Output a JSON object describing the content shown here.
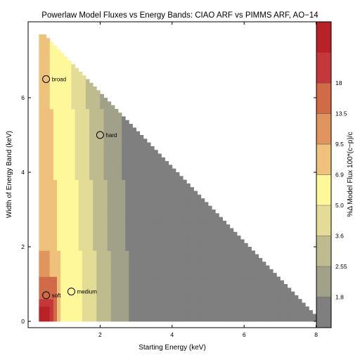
{
  "chart_data": {
    "type": "heatmap",
    "title": "Powerlaw Model Fluxes vs Energy Bands: CIAO ARF vs PIMMS ARF, AO−14",
    "xlabel": "Starting Energy (keV)",
    "ylabel": "Width of Energy Band (keV)",
    "colorbar_label": "%Δ Model Flux 100*(c−p)/c",
    "xlim": [
      0,
      8.6
    ],
    "ylim": [
      -0.15,
      7.9
    ],
    "x_ticks": [
      2,
      4,
      6,
      8
    ],
    "y_ticks": [
      0,
      2,
      4,
      6
    ],
    "grid": false,
    "domain": {
      "x_min": 0.3,
      "x_max": 8.0,
      "y_min": 0.0,
      "width_max": 7.6,
      "total_max": 8.0,
      "step": 0.1
    },
    "colorbar": {
      "tick_labels": [
        "1.8",
        "2.55",
        "3.6",
        "5.0",
        "6.9",
        "9.5",
        "13.5",
        "18"
      ],
      "bins": [
        {
          "range": "<1.8",
          "color": "#7f7f7f"
        },
        {
          "range": "1.8–2.55",
          "color": "#a1a088"
        },
        {
          "range": "2.55–3.6",
          "color": "#bebb8e"
        },
        {
          "range": "3.6–5.0",
          "color": "#e3dc96"
        },
        {
          "range": "5.0–6.9",
          "color": "#fff89b"
        },
        {
          "range": "6.9–9.5",
          "color": "#eec27a"
        },
        {
          "range": "9.5–13.5",
          "color": "#e1955e"
        },
        {
          "range": "13.5–18",
          "color": "#d06a47"
        },
        {
          "range": ">18",
          "color": "#c4373a"
        },
        {
          "range": ">>18",
          "color": "#b82226"
        }
      ]
    },
    "contour_approx": {
      "description_free_thresholds_by_start_energy": true,
      "tiers": [
        {
          "bin": 5,
          "x_max_at_top": 0.5,
          "x_max_at_bottom": 0.9
        },
        {
          "bin": 4,
          "x_max_at_top": 1.1,
          "x_max_at_bottom": 1.5
        },
        {
          "bin": 3,
          "x_max_at_top": 1.5,
          "x_max_at_bottom": 1.9
        },
        {
          "bin": 2,
          "x_max_at_top": 1.9,
          "x_max_at_bottom": 2.3
        },
        {
          "bin": 1,
          "x_max_at_top": 2.4,
          "x_max_at_bottom": 2.8
        }
      ]
    },
    "annotations": [
      {
        "label": "broad",
        "x": 0.5,
        "y": 6.5
      },
      {
        "label": "hard",
        "x": 2.0,
        "y": 5.0
      },
      {
        "label": "medium",
        "x": 1.2,
        "y": 0.8
      },
      {
        "label": "soft",
        "x": 0.5,
        "y": 0.7
      }
    ]
  }
}
